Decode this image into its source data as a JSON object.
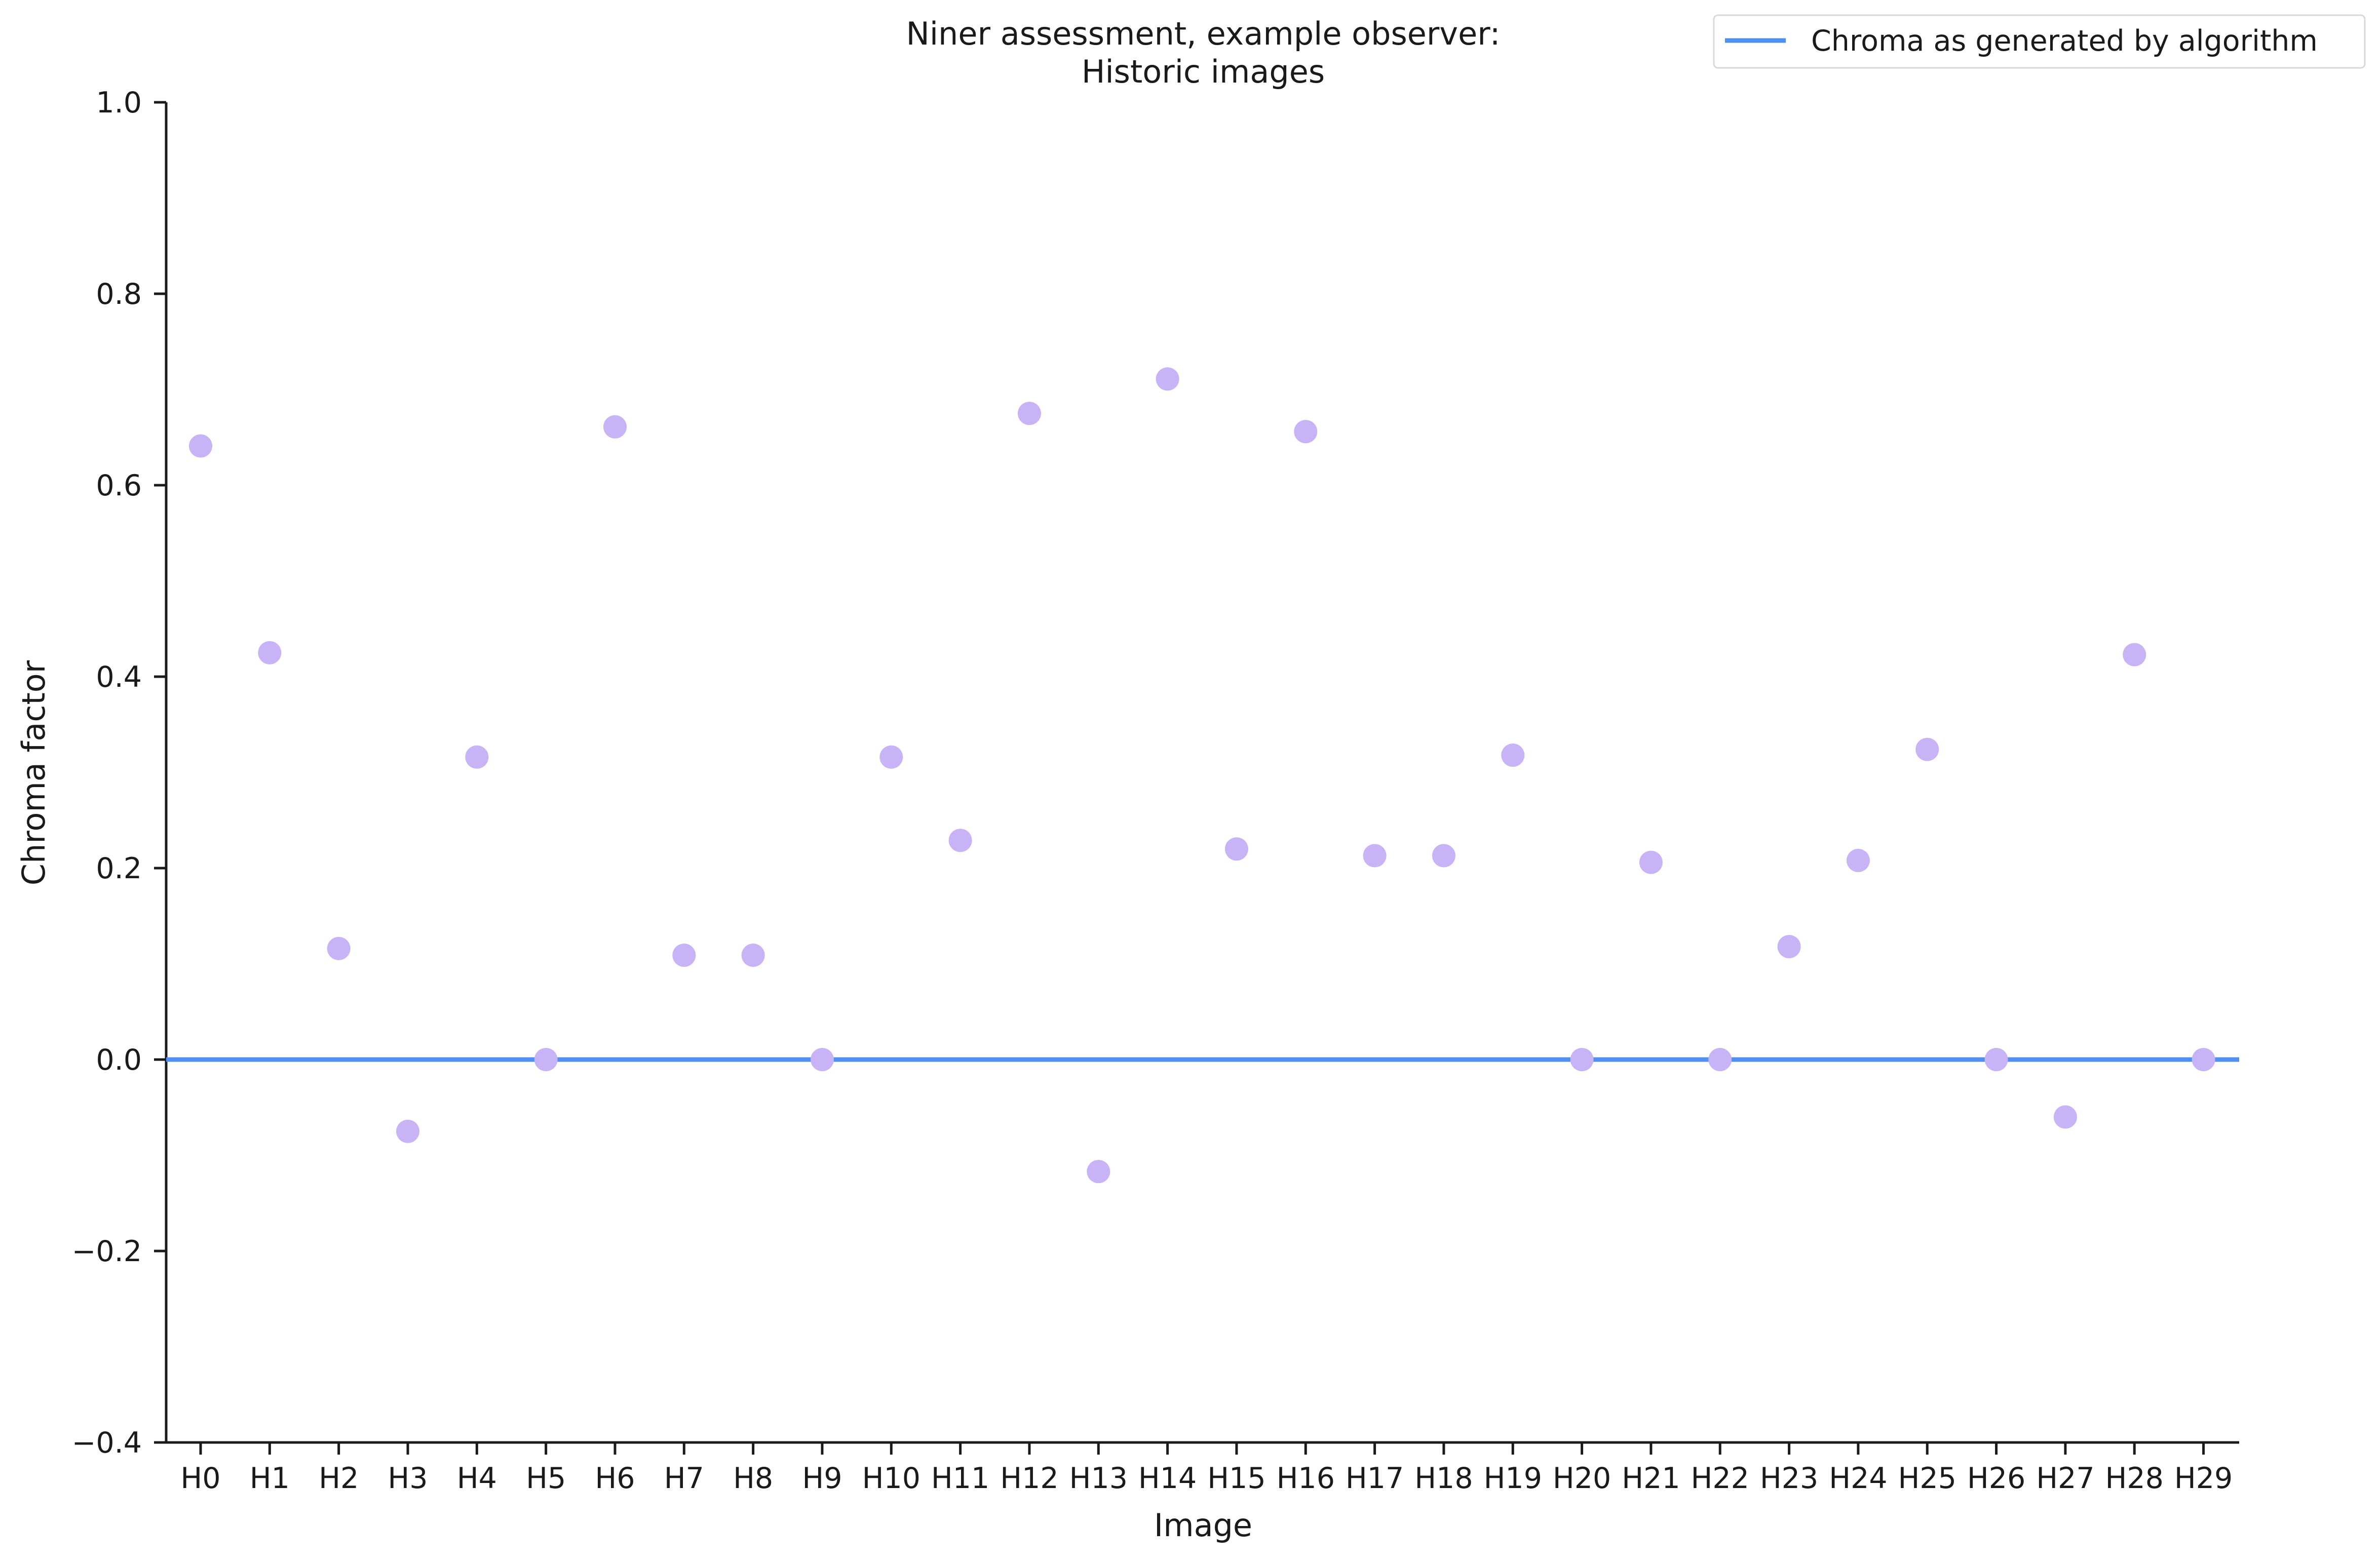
{
  "chart_data": {
    "type": "scatter",
    "title": "Niner assessment, example observer:",
    "subtitle": "Historic images",
    "xlabel": "Image",
    "ylabel": "Chroma factor",
    "ylim": [
      -0.4,
      1.0
    ],
    "yticks": [
      "1.0",
      "0.8",
      "0.6",
      "0.4",
      "0.2",
      "0.0",
      "−0.2",
      "−0.4"
    ],
    "categories": [
      "H0",
      "H1",
      "H2",
      "H3",
      "H4",
      "H5",
      "H6",
      "H7",
      "H8",
      "H9",
      "H10",
      "H11",
      "H12",
      "H13",
      "H14",
      "H15",
      "H16",
      "H17",
      "H18",
      "H19",
      "H20",
      "H21",
      "H22",
      "H23",
      "H24",
      "H25",
      "H26",
      "H27",
      "H28",
      "H29"
    ],
    "series": [
      {
        "values": [
          0.641,
          0.425,
          0.116,
          -0.075,
          0.316,
          0.0,
          0.661,
          0.109,
          0.109,
          0.0,
          0.316,
          0.229,
          0.675,
          -0.117,
          0.711,
          0.22,
          0.656,
          0.213,
          0.213,
          0.318,
          0.0,
          0.206,
          0.0,
          0.118,
          0.208,
          0.324,
          0.0,
          -0.06,
          0.423,
          0.0
        ],
        "color": "#c9b3f7"
      }
    ],
    "reference_line": {
      "name": "Chroma as generated by algorithm",
      "y": 0.0,
      "color": "#4f8ff0"
    },
    "legend_position": "top-right",
    "grid": false
  }
}
